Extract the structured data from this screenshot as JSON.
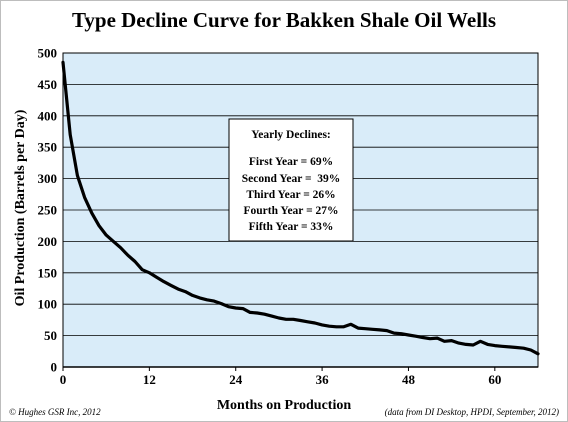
{
  "chart_data": {
    "type": "line",
    "title": "Type Decline Curve for Bakken Shale Oil Wells",
    "xlabel": "Months on Production",
    "ylabel": "Oil Production (Barrels per Day)",
    "xlim": [
      0,
      66
    ],
    "ylim": [
      0,
      500
    ],
    "xticks": [
      0,
      12,
      24,
      36,
      48,
      60
    ],
    "yticks": [
      0,
      50,
      100,
      150,
      200,
      250,
      300,
      350,
      400,
      450,
      500
    ],
    "grid": "horizontal",
    "colors": {
      "plot_bg": "#d9ecf9",
      "line": "#000000",
      "grid": "#000000"
    },
    "series": [
      {
        "x": [
          0,
          1,
          2,
          3,
          4,
          5,
          6,
          7,
          8,
          9,
          10,
          11,
          12,
          13,
          14,
          15,
          16,
          17,
          18,
          19,
          20,
          21,
          22,
          23,
          24,
          25,
          26,
          27,
          28,
          29,
          30,
          31,
          32,
          33,
          34,
          35,
          36,
          37,
          38,
          39,
          40,
          41,
          42,
          43,
          44,
          45,
          46,
          47,
          48,
          49,
          50,
          51,
          52,
          53,
          54,
          55,
          56,
          57,
          58,
          59,
          60,
          61,
          62,
          63,
          64,
          65,
          66
        ],
        "values": [
          485,
          370,
          305,
          270,
          245,
          225,
          210,
          200,
          190,
          178,
          168,
          155,
          150,
          143,
          136,
          130,
          124,
          120,
          114,
          110,
          107,
          105,
          101,
          96,
          94,
          93,
          87,
          86,
          84,
          81,
          78,
          76,
          76,
          74,
          72,
          70,
          67,
          65,
          64,
          64,
          68,
          62,
          61,
          60,
          59,
          58,
          54,
          53,
          51,
          49,
          47,
          45,
          46,
          41,
          42,
          38,
          36,
          35,
          41,
          36,
          34,
          33,
          32,
          31,
          30,
          27,
          21
        ]
      }
    ],
    "annotation": {
      "heading": "Yearly Declines:",
      "lines": [
        "First Year = 69%",
        "Second Year =  39%",
        "Third Year = 26%",
        "Fourth Year = 27%",
        "Fifth Year = 33%"
      ]
    },
    "footer_left": "© Hughes GSR Inc, 2012",
    "footer_right": "(data from DI Desktop, HPDI, September, 2012)"
  }
}
